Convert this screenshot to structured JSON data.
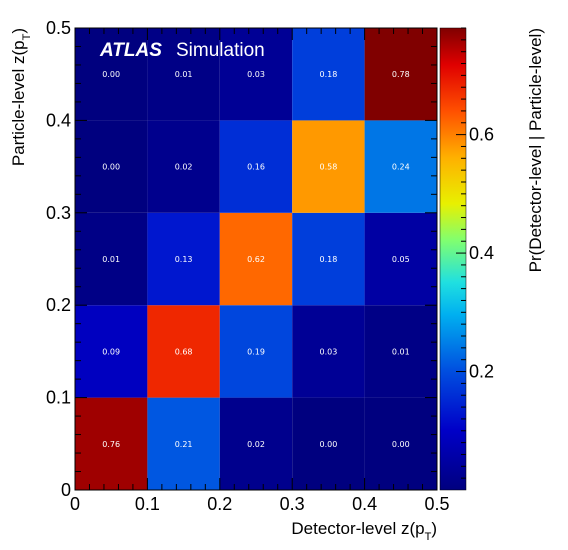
{
  "chart_data": {
    "type": "heatmap",
    "title": "",
    "watermark": {
      "brand": "ATLAS",
      "text": "Simulation"
    },
    "xlabel": "Detector-level z(p_T)",
    "ylabel": "Particle-level z(p_T)",
    "zlabel": "Pr(Detector-level | Particle-level)",
    "x_edges": [
      0,
      0.1,
      0.2,
      0.3,
      0.4,
      0.5
    ],
    "y_edges": [
      0,
      0.1,
      0.2,
      0.3,
      0.4,
      0.5
    ],
    "xlim": [
      0,
      0.5
    ],
    "ylim": [
      0,
      0.5
    ],
    "zlim": [
      0,
      0.78
    ],
    "x_ticks": [
      "0",
      "0.1",
      "0.2",
      "0.3",
      "0.4",
      "0.5"
    ],
    "y_ticks": [
      "0",
      "0.1",
      "0.2",
      "0.3",
      "0.4",
      "0.5"
    ],
    "z_ticks": [
      "0.2",
      "0.4",
      "0.6"
    ],
    "values": [
      [
        0.76,
        0.21,
        0.02,
        0.0,
        0.0
      ],
      [
        0.09,
        0.68,
        0.19,
        0.03,
        0.01
      ],
      [
        0.01,
        0.13,
        0.62,
        0.18,
        0.05
      ],
      [
        0.0,
        0.02,
        0.16,
        0.58,
        0.24
      ],
      [
        0.0,
        0.01,
        0.03,
        0.18,
        0.78
      ]
    ],
    "value_labels": [
      [
        "0.76",
        "0.21",
        "0.02",
        "0.00",
        "0.00"
      ],
      [
        "0.09",
        "0.68",
        "0.19",
        "0.03",
        "0.01"
      ],
      [
        "0.01",
        "0.13",
        "0.62",
        "0.18",
        "0.05"
      ],
      [
        "0.00",
        "0.02",
        "0.16",
        "0.58",
        "0.24"
      ],
      [
        "0.00",
        "0.01",
        "0.03",
        "0.18",
        "0.78"
      ]
    ],
    "colormap": "rainbow (ROOT kBird-like jet)",
    "grid": false,
    "legend": "colorbar right"
  }
}
